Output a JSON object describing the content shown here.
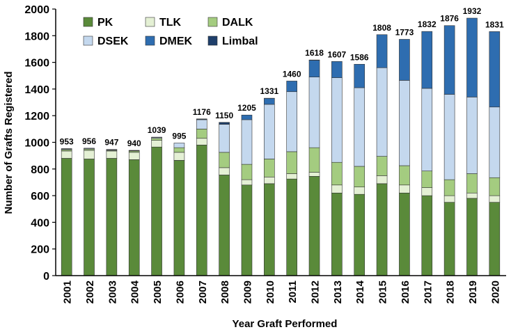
{
  "chart_data": {
    "type": "bar",
    "stacked": true,
    "xlabel": "Year Graft Performed",
    "ylabel": "Number of Grafts Registered",
    "ylim": [
      0,
      2000
    ],
    "yticks": [
      0,
      200,
      400,
      600,
      800,
      1000,
      1200,
      1400,
      1600,
      1800,
      2000
    ],
    "grid": false,
    "legend_position": "top-left",
    "categories": [
      "2001",
      "2002",
      "2003",
      "2004",
      "2005",
      "2006",
      "2007",
      "2008",
      "2009",
      "2010",
      "2011",
      "2012",
      "2013",
      "2014",
      "2015",
      "2016",
      "2017",
      "2018",
      "2019",
      "2020"
    ],
    "totals": [
      953,
      956,
      947,
      940,
      1039,
      995,
      1176,
      1150,
      1205,
      1331,
      1460,
      1618,
      1607,
      1586,
      1808,
      1773,
      1832,
      1876,
      1932,
      1831
    ],
    "series": [
      {
        "name": "PK",
        "color": "#5a8a3a",
        "values": [
          880,
          875,
          880,
          870,
          965,
          865,
          980,
          755,
          680,
          690,
          725,
          745,
          620,
          610,
          690,
          620,
          600,
          550,
          580,
          550
        ]
      },
      {
        "name": "TLK",
        "color": "#e4f0d4",
        "values": [
          55,
          65,
          55,
          55,
          50,
          60,
          50,
          55,
          40,
          50,
          40,
          30,
          60,
          55,
          60,
          60,
          60,
          50,
          40,
          50
        ]
      },
      {
        "name": "DALK",
        "color": "#a4cc80",
        "values": [
          10,
          10,
          5,
          10,
          15,
          35,
          70,
          115,
          115,
          135,
          165,
          185,
          170,
          155,
          145,
          145,
          125,
          120,
          145,
          135
        ]
      },
      {
        "name": "DSEK",
        "color": "#c4d8ee",
        "values": [
          5,
          5,
          5,
          3,
          7,
          35,
          70,
          210,
          335,
          410,
          450,
          530,
          635,
          590,
          665,
          640,
          620,
          640,
          575,
          530
        ]
      },
      {
        "name": "DMEK",
        "color": "#2e6db0",
        "values": [
          0,
          0,
          0,
          0,
          0,
          0,
          4,
          0,
          35,
          45,
          80,
          126,
          122,
          176,
          248,
          308,
          427,
          516,
          592,
          566
        ]
      },
      {
        "name": "Limbal",
        "color": "#1f3f6b",
        "values": [
          3,
          1,
          2,
          2,
          2,
          0,
          2,
          15,
          0,
          1,
          0,
          2,
          0,
          0,
          0,
          0,
          0,
          0,
          0,
          0
        ]
      }
    ]
  }
}
